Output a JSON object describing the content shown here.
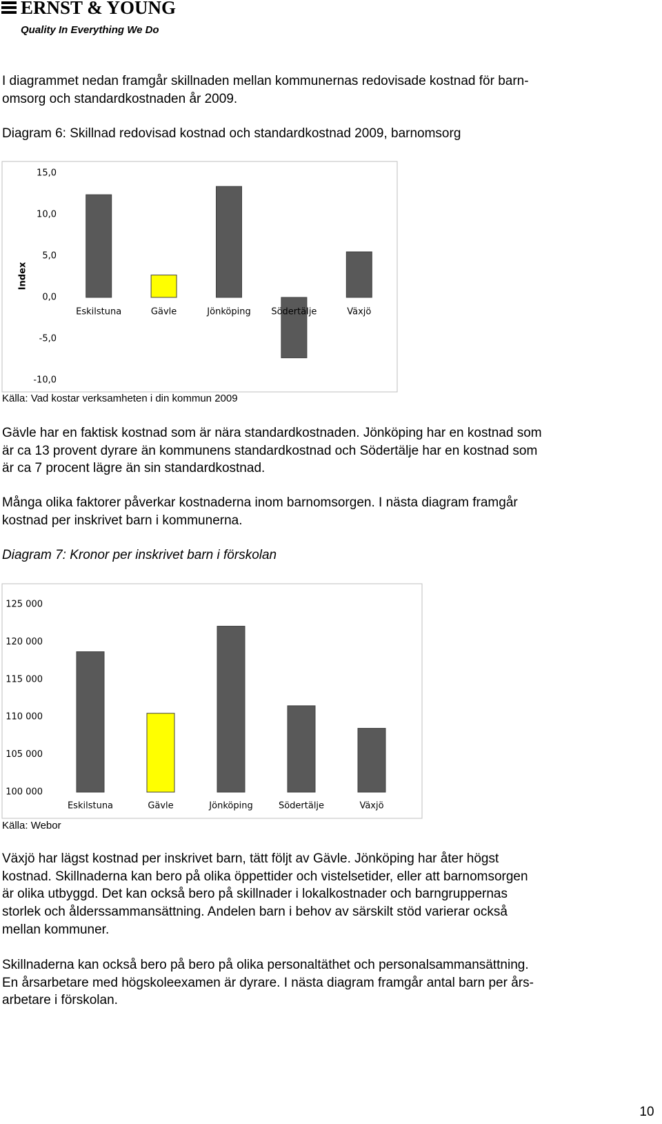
{
  "header": {
    "brand": "ERNST & YOUNG",
    "tagline": "Quality In Everything We Do"
  },
  "paragraphs": [
    [
      "I diagrammet nedan framgår skillnaden mellan kommunernas redovisade kostnad för barn-",
      "omsorg och standardkostnaden år 2009."
    ],
    [
      "Gävle har en faktisk kostnad som är nära standardkostnaden. Jönköping har en kostnad som",
      "är ca 13 provent dyrare än kommunens standardkostnad och Södertälje har en kostnad som",
      "är ca 7 procent lägre än sin standardkostnad."
    ],
    [
      "Många olika faktorer påverkar kostnaderna inom barnomsorgen. I nästa diagram framgår",
      "kostnad per inskrivet barn i kommunerna."
    ],
    [
      "Växjö har lägst kostnad per inskrivet barn, tätt följt av Gävle. Jönköping har åter högst",
      "kostnad. Skillnaderna kan bero på olika öppettider och vistelsetider, eller att barnomsorgen",
      "är olika utbyggd. Det kan också bero på skillnader i lokalkostnader och barngruppernas",
      "storlek och ålderssammansättning. Andelen barn i behov av särskilt stöd varierar också",
      "mellan kommuner."
    ],
    [
      "Skillnaderna kan också bero på bero på olika personaltäthet och personalsammansättning.",
      "En årsarbetare med högskoleexamen är dyrare. I nästa diagram framgår antal barn per års-",
      "arbetare i förskolan."
    ]
  ],
  "captions": [
    "Diagram 6: Skillnad redovisad kostnad och standardkostnad 2009, barnomsorg",
    "Diagram 7: Kronor per inskrivet barn i förskolan"
  ],
  "sources": [
    "Källa: Vad kostar verksamheten i din kommun 2009",
    "Källa: Webor"
  ],
  "page_number": "10",
  "chart_data": [
    {
      "type": "bar",
      "ylabel": "Index",
      "categories": [
        "Eskilstuna",
        "Gävle",
        "Jönköping",
        "Södertälje",
        "Växjö"
      ],
      "values": [
        12.4,
        2.7,
        13.4,
        -7.3,
        5.5
      ],
      "colors": [
        "#595959",
        "#ffff00",
        "#595959",
        "#595959",
        "#595959"
      ],
      "ylim": [
        -10,
        15
      ],
      "yticks": [
        {
          "value": -10,
          "label": "-10,0"
        },
        {
          "value": -5,
          "label": "-5,0"
        },
        {
          "value": 0,
          "label": "0,0"
        },
        {
          "value": 5,
          "label": "5,0"
        },
        {
          "value": 10,
          "label": "10,0"
        },
        {
          "value": 15,
          "label": "15,0"
        }
      ],
      "grid": false
    },
    {
      "type": "bar",
      "categories": [
        "Eskilstuna",
        "Gävle",
        "Jönköping",
        "Södertälje",
        "Växjö"
      ],
      "values": [
        118700,
        110500,
        122100,
        111500,
        108500
      ],
      "colors": [
        "#595959",
        "#ffff00",
        "#595959",
        "#595959",
        "#595959"
      ],
      "ylim": [
        100000,
        125000
      ],
      "yticks": [
        {
          "value": 100000,
          "label": "100 000"
        },
        {
          "value": 105000,
          "label": "105 000"
        },
        {
          "value": 110000,
          "label": "110 000"
        },
        {
          "value": 115000,
          "label": "115 000"
        },
        {
          "value": 120000,
          "label": "120 000"
        },
        {
          "value": 125000,
          "label": "125 000"
        }
      ],
      "grid": false
    }
  ]
}
